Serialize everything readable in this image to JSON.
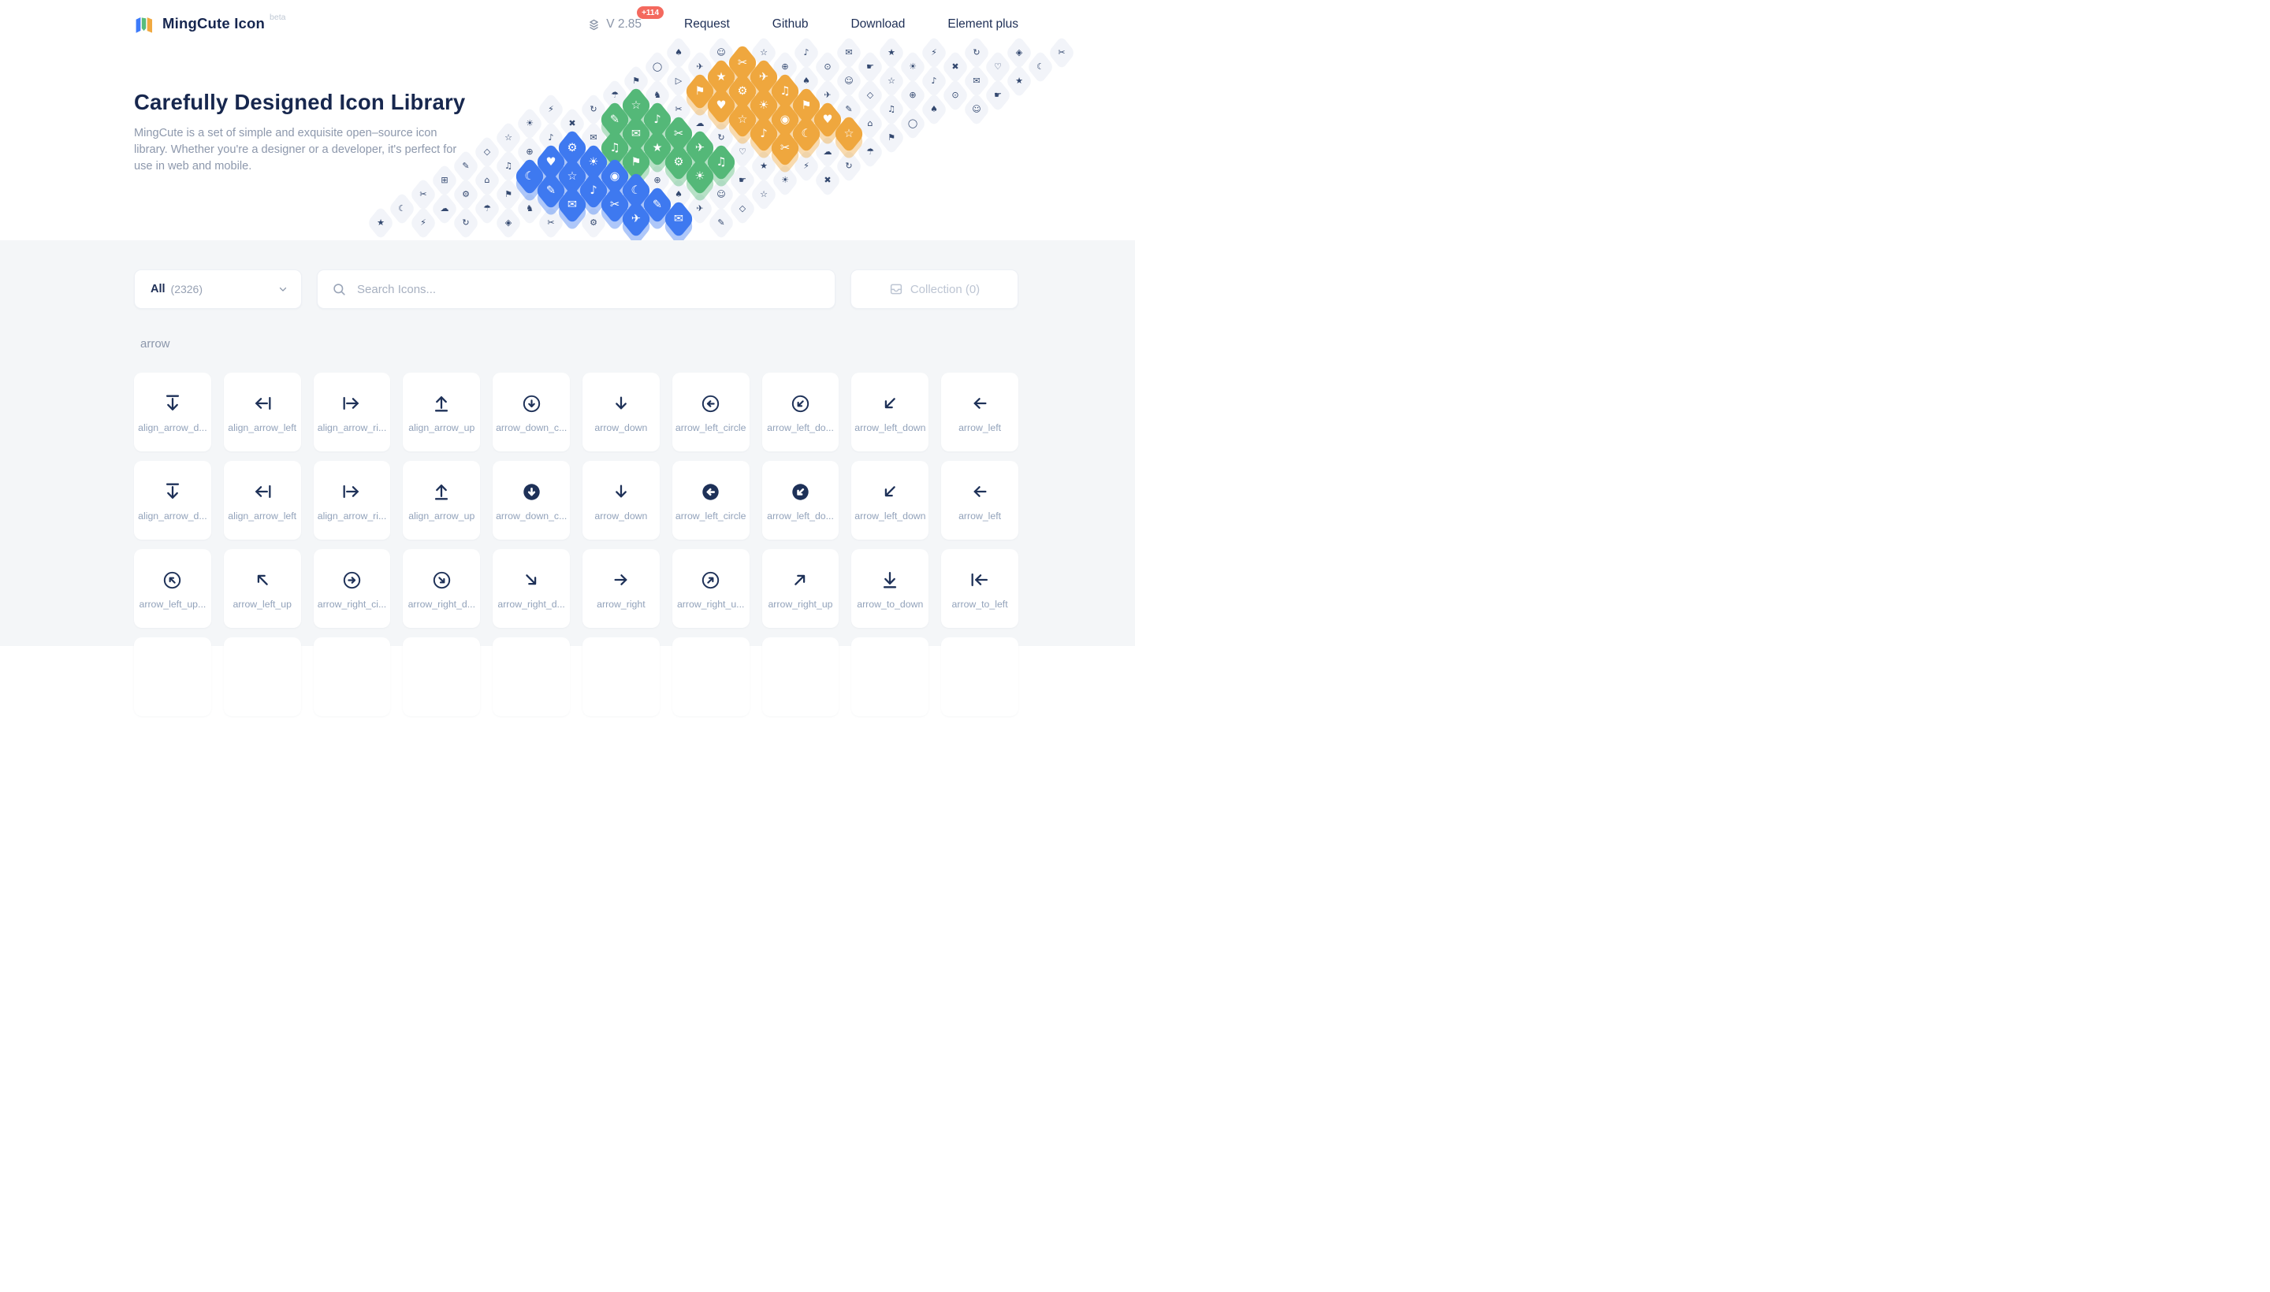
{
  "header": {
    "logo_text": "MingCute Icon",
    "logo_badge": "beta",
    "version": "V 2.85",
    "version_update_badge": "+114",
    "nav": [
      {
        "label": "Request"
      },
      {
        "label": "Github"
      },
      {
        "label": "Download"
      },
      {
        "label": "Element plus"
      }
    ]
  },
  "hero": {
    "title": "Carefully Designed Icon Library",
    "description": "MingCute is a set of simple and exquisite open–source icon\nlibrary. Whether you're a designer or a developer, it's perfect for\nuse in web and mobile."
  },
  "toolbar": {
    "filter_selected": "All",
    "filter_count": "(2326)",
    "search_placeholder": "Search Icons...",
    "collection_label": "Collection (0)"
  },
  "section": {
    "category_label": "arrow"
  },
  "grid": {
    "partial_row_cards": 10,
    "rows": [
      [
        {
          "label": "align_arrow_d...",
          "icon": "align-arrow-down",
          "glyph": "down",
          "bar": "top",
          "circle": "none"
        },
        {
          "label": "align_arrow_left",
          "icon": "align-arrow-left",
          "glyph": "left",
          "bar": "right",
          "circle": "none"
        },
        {
          "label": "align_arrow_ri...",
          "icon": "align-arrow-right",
          "glyph": "right",
          "bar": "left",
          "circle": "none"
        },
        {
          "label": "align_arrow_up",
          "icon": "align-arrow-up",
          "glyph": "up",
          "bar": "bottom",
          "circle": "none"
        },
        {
          "label": "arrow_down_c...",
          "icon": "arrow-down-circle",
          "glyph": "down",
          "bar": "none",
          "circle": "outline"
        },
        {
          "label": "arrow_down",
          "icon": "arrow-down",
          "glyph": "down",
          "bar": "none",
          "circle": "none"
        },
        {
          "label": "arrow_left_circle",
          "icon": "arrow-left-circle",
          "glyph": "left",
          "bar": "none",
          "circle": "outline"
        },
        {
          "label": "arrow_left_do...",
          "icon": "arrow-left-down-circle",
          "glyph": "down-left",
          "bar": "none",
          "circle": "outline"
        },
        {
          "label": "arrow_left_down",
          "icon": "arrow-left-down",
          "glyph": "down-left",
          "bar": "none",
          "circle": "none"
        },
        {
          "label": "arrow_left",
          "icon": "arrow-left",
          "glyph": "left",
          "bar": "none",
          "circle": "none"
        }
      ],
      [
        {
          "label": "align_arrow_d...",
          "icon": "align-arrow-down-fill",
          "glyph": "down",
          "bar": "top",
          "circle": "none"
        },
        {
          "label": "align_arrow_left",
          "icon": "align-arrow-left-fill",
          "glyph": "left",
          "bar": "right",
          "circle": "none"
        },
        {
          "label": "align_arrow_ri...",
          "icon": "align-arrow-right-fill",
          "glyph": "right",
          "bar": "left",
          "circle": "none"
        },
        {
          "label": "align_arrow_up",
          "icon": "align-arrow-up-fill",
          "glyph": "up",
          "bar": "bottom",
          "circle": "none"
        },
        {
          "label": "arrow_down_c...",
          "icon": "arrow-down-circle-fill",
          "glyph": "down",
          "bar": "none",
          "circle": "fill"
        },
        {
          "label": "arrow_down",
          "icon": "arrow-down-fill",
          "glyph": "down",
          "bar": "none",
          "circle": "none"
        },
        {
          "label": "arrow_left_circle",
          "icon": "arrow-left-circle-fill",
          "glyph": "left",
          "bar": "none",
          "circle": "fill"
        },
        {
          "label": "arrow_left_do...",
          "icon": "arrow-left-down-circle-fill",
          "glyph": "down-left",
          "bar": "none",
          "circle": "fill"
        },
        {
          "label": "arrow_left_down",
          "icon": "arrow-left-down-fill",
          "glyph": "down-left",
          "bar": "none",
          "circle": "none"
        },
        {
          "label": "arrow_left",
          "icon": "arrow-left-fill",
          "glyph": "left",
          "bar": "none",
          "circle": "none"
        }
      ],
      [
        {
          "label": "arrow_left_up...",
          "icon": "arrow-left-up-circle",
          "glyph": "up-left",
          "bar": "none",
          "circle": "outline"
        },
        {
          "label": "arrow_left_up",
          "icon": "arrow-left-up",
          "glyph": "up-left",
          "bar": "none",
          "circle": "none"
        },
        {
          "label": "arrow_right_ci...",
          "icon": "arrow-right-circle",
          "glyph": "right",
          "bar": "none",
          "circle": "outline"
        },
        {
          "label": "arrow_right_d...",
          "icon": "arrow-right-down-circle",
          "glyph": "down-right",
          "bar": "none",
          "circle": "outline"
        },
        {
          "label": "arrow_right_d...",
          "icon": "arrow-right-down",
          "glyph": "down-right",
          "bar": "none",
          "circle": "none"
        },
        {
          "label": "arrow_right",
          "icon": "arrow-right",
          "glyph": "right",
          "bar": "none",
          "circle": "none"
        },
        {
          "label": "arrow_right_u...",
          "icon": "arrow-right-up-circle",
          "glyph": "up-right",
          "bar": "none",
          "circle": "outline"
        },
        {
          "label": "arrow_right_up",
          "icon": "arrow-right-up",
          "glyph": "up-right",
          "bar": "none",
          "circle": "none"
        },
        {
          "label": "arrow_to_down",
          "icon": "arrow-to-down",
          "glyph": "down",
          "bar": "bottom",
          "circle": "none"
        },
        {
          "label": "arrow_to_left",
          "icon": "arrow-to-left",
          "glyph": "left",
          "bar": "left",
          "circle": "none"
        }
      ]
    ]
  },
  "illustration": {
    "tile_color": "#f2f4f9",
    "icon_color": "#33486f",
    "clusters": {
      "orange": {
        "color": "#efa73e",
        "cells": [
          [
            1,
            2
          ],
          [
            2,
            2
          ],
          [
            2,
            3
          ],
          [
            3,
            2
          ],
          [
            3,
            3
          ],
          [
            3,
            4
          ],
          [
            4,
            3
          ],
          [
            4,
            4
          ],
          [
            4,
            5
          ],
          [
            5,
            4
          ],
          [
            5,
            5
          ],
          [
            5,
            6
          ],
          [
            6,
            5
          ],
          [
            6,
            6
          ],
          [
            6,
            7
          ],
          [
            7,
            6
          ]
        ]
      },
      "green": {
        "color": "#54b878",
        "cells": [
          [
            4,
            1
          ],
          [
            5,
            1
          ],
          [
            5,
            2
          ],
          [
            6,
            2
          ],
          [
            6,
            3
          ],
          [
            7,
            2
          ],
          [
            7,
            3
          ],
          [
            7,
            4
          ],
          [
            8,
            3
          ],
          [
            8,
            4
          ],
          [
            8,
            5
          ],
          [
            9,
            5
          ]
        ]
      },
      "blue": {
        "color": "#3e79f0",
        "cells": [
          [
            7,
            1
          ],
          [
            8,
            1
          ],
          [
            8,
            2
          ],
          [
            9,
            1
          ],
          [
            9,
            2
          ],
          [
            9,
            3
          ],
          [
            10,
            2
          ],
          [
            10,
            3
          ],
          [
            10,
            4
          ],
          [
            11,
            3
          ],
          [
            11,
            4
          ],
          [
            11,
            5
          ],
          [
            12,
            5
          ],
          [
            12,
            6
          ]
        ]
      }
    },
    "flat_glyphs": [
      "✂",
      "◯",
      "☆",
      "♡",
      "⚙",
      "✈",
      "♪",
      "☾",
      "⚑",
      "◇",
      "✉",
      "☁",
      "▷",
      "⊕",
      "★",
      "☂",
      "✎",
      "⊙",
      "⚡",
      "♞",
      "♫",
      "☛",
      "↻",
      "⊞",
      "♠",
      "☀",
      "◈",
      "⌂",
      "☺",
      "✖"
    ],
    "accent_glyphs": [
      "♥",
      "★",
      "♪",
      "☀",
      "✈",
      "☾",
      "⚑",
      "✉",
      "☆",
      "⚙",
      "✂",
      "◉",
      "♫",
      "✎"
    ]
  },
  "colors": {
    "accent_red": "#f4695e",
    "navy": "#1e3158",
    "page_bg": "#f4f6f8",
    "blue": "#3e79f0",
    "green": "#54b878",
    "orange": "#efa73e"
  }
}
